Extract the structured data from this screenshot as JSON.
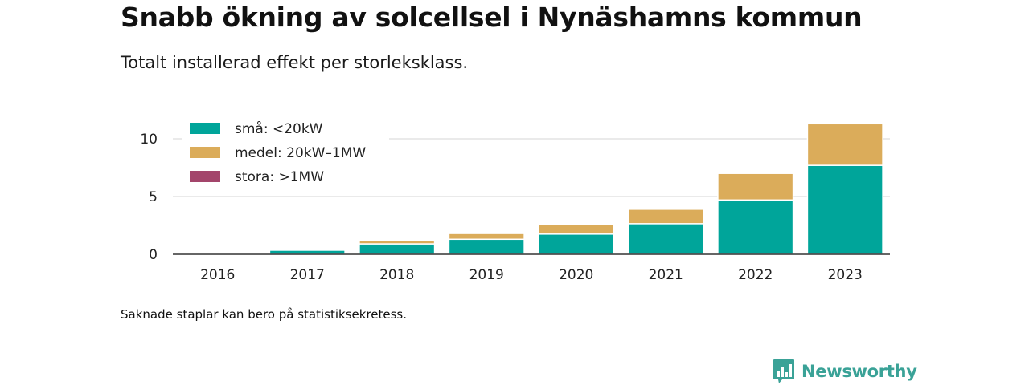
{
  "header": {
    "title": "Snabb ökning av solcellsel i Nynäshamns kommun",
    "subtitle": "Totalt installerad effekt per storleksklass."
  },
  "footer": {
    "note": "Saknade staplar kan bero på statistiksekretess.",
    "brand": "Newsworthy",
    "brand_icon": "bar-chart-speech-bubble-icon"
  },
  "colors": {
    "sma": "#00a59a",
    "medel": "#dbac5a",
    "stora": "#a3456b",
    "brand": "#3aa297",
    "grid": "#dddddd",
    "axis": "#333333"
  },
  "chart_data": {
    "type": "bar",
    "stacked": true,
    "categories": [
      "2016",
      "2017",
      "2018",
      "2019",
      "2020",
      "2021",
      "2022",
      "2023"
    ],
    "series": [
      {
        "name": "små: <20kW",
        "color": "#00a59a",
        "values": [
          0.0,
          0.35,
          0.9,
          1.3,
          1.75,
          2.65,
          4.7,
          7.7
        ]
      },
      {
        "name": "medel: 20kW–1MW",
        "color": "#dbac5a",
        "values": [
          0.0,
          0.0,
          0.3,
          0.5,
          0.85,
          1.25,
          2.3,
          3.6
        ]
      },
      {
        "name": "stora: >1MW",
        "color": "#a3456b",
        "values": [
          0,
          0,
          0,
          0,
          0,
          0,
          0,
          0
        ]
      }
    ],
    "yticks": [
      0,
      5,
      10
    ],
    "ylim": [
      0,
      11.5
    ],
    "grid": true,
    "legend_position": "top-left"
  }
}
